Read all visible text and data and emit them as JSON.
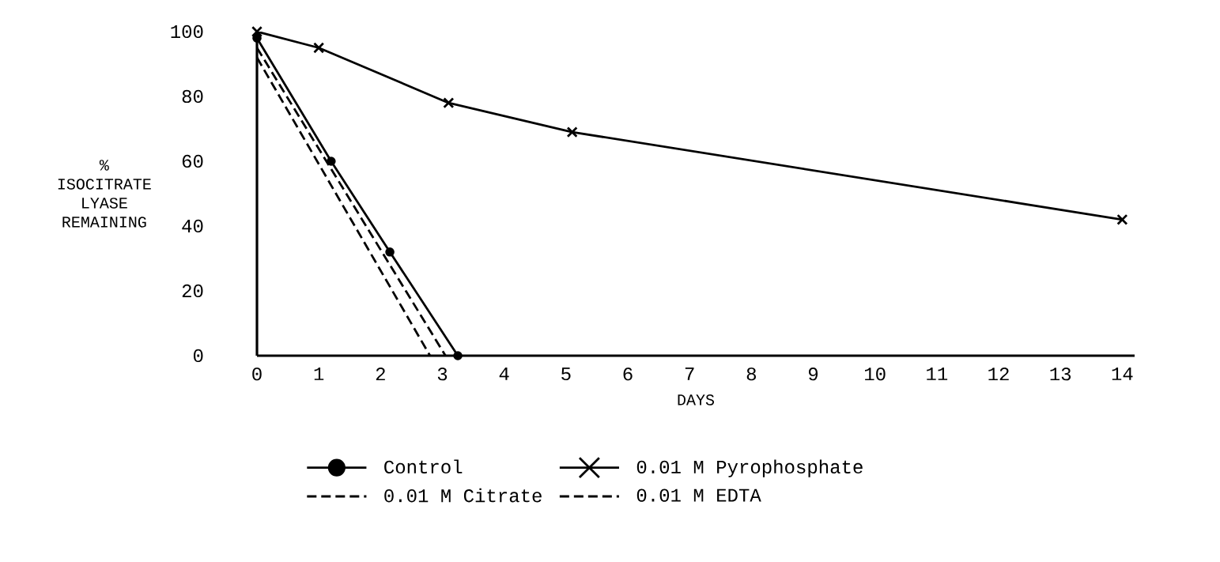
{
  "chart_data": {
    "type": "line",
    "xlabel": "DAYS",
    "ylabel": "% ISOCITRATE LYASE REMAINING",
    "xlim": [
      0,
      14.2
    ],
    "ylim": [
      0,
      100
    ],
    "xticks": [
      0,
      1,
      2,
      3,
      4,
      5,
      6,
      7,
      8,
      9,
      10,
      11,
      12,
      13,
      14
    ],
    "yticks": [
      0,
      20,
      40,
      60,
      80,
      100
    ],
    "grid": false,
    "legend": "bottom",
    "series": [
      {
        "name": "Control",
        "color": "#000000",
        "marker": "circle",
        "line_style": "solid",
        "x": [
          0,
          1.2,
          2.15,
          3.25
        ],
        "values": [
          98,
          60,
          32,
          0
        ]
      },
      {
        "name": "0.01 M Citrate",
        "color": "#000000",
        "marker": "none",
        "line_style": "dashed",
        "x": [
          0,
          3.05
        ],
        "values": [
          95,
          0
        ]
      },
      {
        "name": "0.01 M EDTA",
        "color": "#000000",
        "marker": "none",
        "line_style": "dashed",
        "x": [
          0,
          2.8
        ],
        "values": [
          92,
          0
        ]
      },
      {
        "name": "0.01 M Pyrophosphate",
        "color": "#000000",
        "marker": "cross",
        "line_style": "solid",
        "x": [
          0,
          1,
          3.1,
          5.1,
          14
        ],
        "values": [
          100,
          95,
          78,
          69,
          42
        ]
      }
    ]
  }
}
